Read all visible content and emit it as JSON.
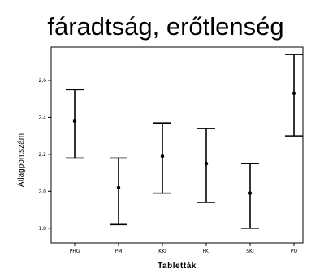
{
  "chart_data": {
    "type": "errorbar",
    "title": "fáradtság, erőtlenség",
    "xlabel": "Tabletták",
    "ylabel": "Átlagpontszám",
    "categories": [
      "PHG",
      "PM",
      "KKI",
      "FKI",
      "SKI",
      "PO"
    ],
    "y_ticks": [
      "1,8",
      "2,0",
      "2,2",
      "2,4",
      "2,6"
    ],
    "y_tick_values": [
      1.8,
      2.0,
      2.2,
      2.4,
      2.6
    ],
    "ylim": [
      1.72,
      2.78
    ],
    "grid": false,
    "series": [
      {
        "mean": [
          2.38,
          2.02,
          2.19,
          2.15,
          1.99,
          2.53
        ],
        "lower": [
          2.18,
          1.82,
          1.99,
          1.94,
          1.8,
          2.3
        ],
        "upper": [
          2.55,
          2.18,
          2.37,
          2.34,
          2.15,
          2.74
        ]
      }
    ]
  }
}
